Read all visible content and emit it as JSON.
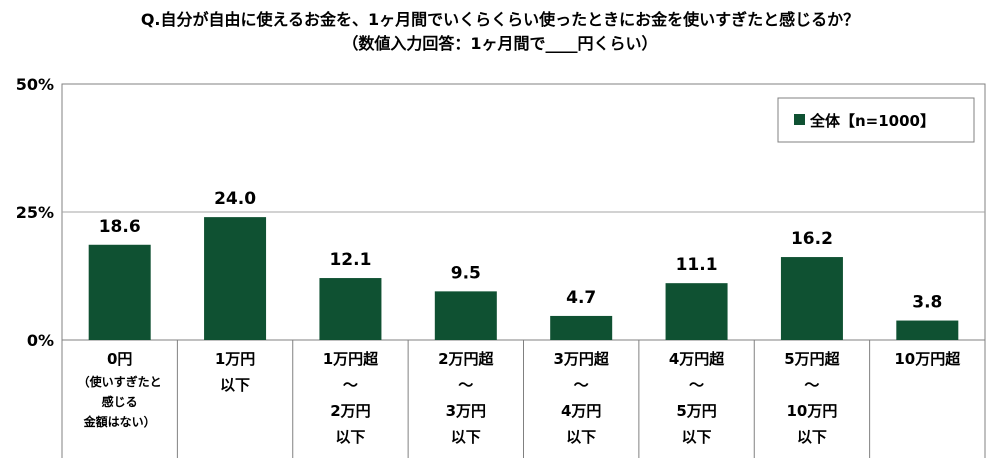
{
  "chart_data": {
    "type": "bar",
    "title": "Q.自分が自由に使えるお金を、1ヶ月間でいくらくらい使ったときにお金を使いすぎたと感じるか？",
    "subtitle": "（数値入力回答：1ヶ月間で____円くらい）",
    "categories": [
      [
        "0円",
        "（使いすぎたと",
        "感じる",
        "金額はない）"
      ],
      [
        "1万円",
        "以下"
      ],
      [
        "1万円超",
        "～",
        "2万円",
        "以下"
      ],
      [
        "2万円超",
        "～",
        "3万円",
        "以下"
      ],
      [
        "3万円超",
        "～",
        "4万円",
        "以下"
      ],
      [
        "4万円超",
        "～",
        "5万円",
        "以下"
      ],
      [
        "5万円超",
        "～",
        "10万円",
        "以下"
      ],
      [
        "10万円超"
      ]
    ],
    "series": [
      {
        "name": "全体【n=1000】",
        "values": [
          18.6,
          24.0,
          12.1,
          9.5,
          4.7,
          11.1,
          16.2,
          3.8
        ]
      }
    ],
    "value_labels": [
      "18.6",
      "24.0",
      "12.1",
      "9.5",
      "4.7",
      "11.1",
      "16.2",
      "3.8"
    ],
    "yticks": [
      "0%",
      "25%",
      "50%"
    ],
    "ytick_values": [
      0,
      25,
      50
    ],
    "ylim": [
      0,
      50
    ],
    "grid": true,
    "legend_position": "top-right",
    "colors": {
      "bar": "#0f5132",
      "grid": "#a6a6a6",
      "axis": "#808080"
    }
  }
}
